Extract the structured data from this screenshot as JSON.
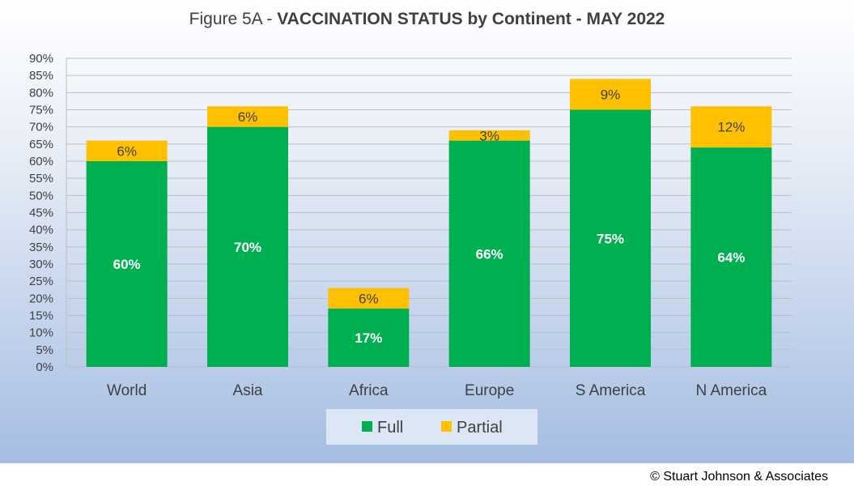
{
  "title_prefix": "Figure 5A - ",
  "title_bold": "VACCINATION STATUS by Continent - MAY 2022",
  "copyright": "© Stuart Johnson & Associates",
  "colors": {
    "full": "#00b050",
    "partial": "#ffc000",
    "grid": "#bfbfbf"
  },
  "chart_data": {
    "type": "bar",
    "stacked": true,
    "categories": [
      "World",
      "Asia",
      "Africa",
      "Europe",
      "S America",
      "N America"
    ],
    "series": [
      {
        "name": "Full",
        "values": [
          60,
          70,
          17,
          66,
          75,
          64
        ],
        "labels": [
          "60%",
          "70%",
          "17%",
          "66%",
          "75%",
          "64%"
        ]
      },
      {
        "name": "Partial",
        "values": [
          6,
          6,
          6,
          3,
          9,
          12
        ],
        "labels": [
          "6%",
          "6%",
          "6%",
          "3%",
          "9%",
          "12%"
        ]
      }
    ],
    "ylim": [
      0,
      90
    ],
    "ytick_step": 5,
    "ytick_labels": [
      "0%",
      "5%",
      "10%",
      "15%",
      "20%",
      "25%",
      "30%",
      "35%",
      "40%",
      "45%",
      "50%",
      "55%",
      "60%",
      "65%",
      "70%",
      "75%",
      "80%",
      "85%",
      "90%"
    ],
    "grid": true,
    "legend": "bottom"
  }
}
